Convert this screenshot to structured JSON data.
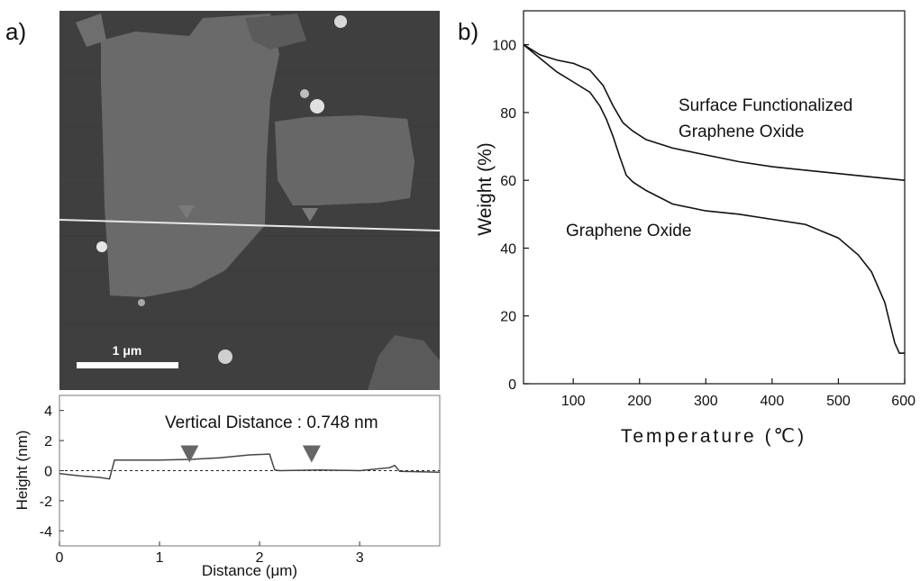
{
  "panels": {
    "a_label": "a)",
    "b_label": "b)"
  },
  "afm_image": {
    "scale_bar_label": "1 μm",
    "scale_bar_length_um": 1,
    "colors": {
      "background": "#404040",
      "flake": "#6b6b6b",
      "line": "#e8e8e8",
      "marker": "#7a7a7a"
    }
  },
  "chart_data": [
    {
      "type": "line",
      "xlabel": "Distance (μm)",
      "ylabel": "Height (nm)",
      "xlim": [
        0,
        3.8
      ],
      "ylim": [
        -5,
        5
      ],
      "x_ticks": [
        0,
        1,
        2,
        3
      ],
      "y_ticks": [
        -4,
        -2,
        0,
        2,
        4
      ],
      "annotation": "Vertical Distance : 0.748 nm",
      "markers_x": [
        1.3,
        2.52
      ],
      "baseline_y": 0,
      "series": [
        {
          "x": [
            0,
            0.2,
            0.4,
            0.5,
            0.55,
            0.6,
            1.0,
            1.3,
            1.6,
            1.9,
            2.1,
            2.15,
            2.2,
            2.6,
            3.0,
            3.3,
            3.35,
            3.4,
            3.8
          ],
          "values": [
            -0.2,
            -0.35,
            -0.45,
            -0.55,
            0.7,
            0.7,
            0.7,
            0.75,
            0.85,
            1.05,
            1.1,
            0.05,
            0.0,
            0.05,
            0.0,
            0.2,
            0.35,
            -0.05,
            -0.1
          ]
        }
      ]
    },
    {
      "type": "line",
      "xlabel": "Temperature (℃)",
      "ylabel": "Weight (%)",
      "xlim": [
        25,
        600
      ],
      "ylim": [
        0,
        110
      ],
      "x_ticks": [
        100,
        200,
        300,
        400,
        500,
        600
      ],
      "y_ticks": [
        0,
        20,
        40,
        60,
        80,
        100
      ],
      "annotations": [
        "Surface Functionalized",
        "Graphene Oxide",
        "Graphene Oxide"
      ],
      "series": [
        {
          "name": "Surface Functionalized Graphene Oxide",
          "x": [
            25,
            50,
            75,
            100,
            125,
            145,
            160,
            175,
            190,
            210,
            250,
            300,
            350,
            400,
            450,
            500,
            550,
            600
          ],
          "values": [
            100,
            97,
            95.5,
            94.5,
            92.5,
            88,
            82,
            77,
            74.5,
            72,
            69.5,
            67.5,
            65.5,
            64,
            63,
            62,
            61,
            60
          ]
        },
        {
          "name": "Graphene Oxide",
          "x": [
            25,
            50,
            75,
            100,
            125,
            140,
            150,
            160,
            170,
            180,
            190,
            210,
            250,
            300,
            350,
            400,
            450,
            500,
            530,
            550,
            570,
            585,
            592,
            600
          ],
          "values": [
            100,
            96,
            92,
            89,
            86,
            82,
            78,
            73,
            67,
            61.5,
            59.5,
            57,
            53,
            51,
            50,
            48.5,
            47,
            43,
            38,
            33,
            24,
            12,
            9,
            9
          ]
        }
      ]
    }
  ]
}
